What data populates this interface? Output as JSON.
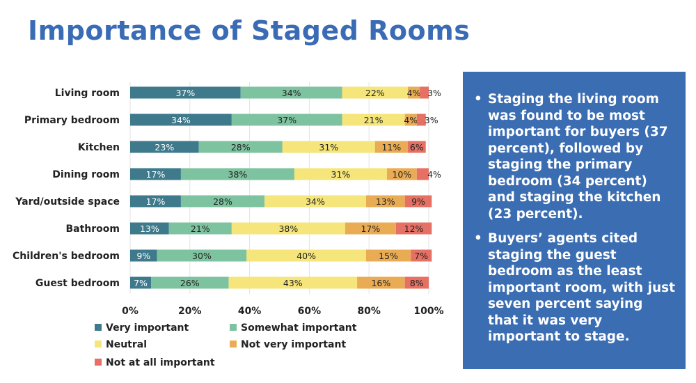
{
  "title": "Importance of Staged Rooms",
  "chart_data": {
    "type": "bar",
    "orientation": "horizontal",
    "stacked": true,
    "categories": [
      "Living room",
      "Primary bedroom",
      "Kitchen",
      "Dining room",
      "Yard/outside space",
      "Bathroom",
      "Children's bedroom",
      "Guest bedroom"
    ],
    "series": [
      {
        "name": "Very important",
        "color": "#3e7a8c",
        "values": [
          37,
          34,
          23,
          17,
          17,
          13,
          9,
          7
        ]
      },
      {
        "name": "Somewhat important",
        "color": "#7ec3a0",
        "values": [
          34,
          37,
          28,
          38,
          28,
          21,
          30,
          26
        ]
      },
      {
        "name": "Neutral",
        "color": "#f5e57a",
        "values": [
          22,
          21,
          31,
          31,
          34,
          38,
          40,
          43
        ]
      },
      {
        "name": "Not very important",
        "color": "#e9ac55",
        "values": [
          4,
          4,
          11,
          10,
          13,
          17,
          15,
          16
        ]
      },
      {
        "name": "Not at all important",
        "color": "#e57063",
        "values": [
          3,
          3,
          6,
          4,
          9,
          12,
          7,
          8
        ]
      }
    ],
    "xticks": [
      "0%",
      "20%",
      "40%",
      "60%",
      "80%",
      "100%"
    ],
    "xlim": [
      0,
      100
    ],
    "grid": true,
    "legend_position": "bottom"
  },
  "panel": {
    "bullets": [
      "Staging the living room was found to be most important for buyers (37 percent), followed by staging the primary bedroom (34 percent) and staging the kitchen (23 percent).",
      "Buyers’ agents cited staging the guest bedroom as the least important room, with just seven percent saying that it was very important to stage."
    ]
  }
}
